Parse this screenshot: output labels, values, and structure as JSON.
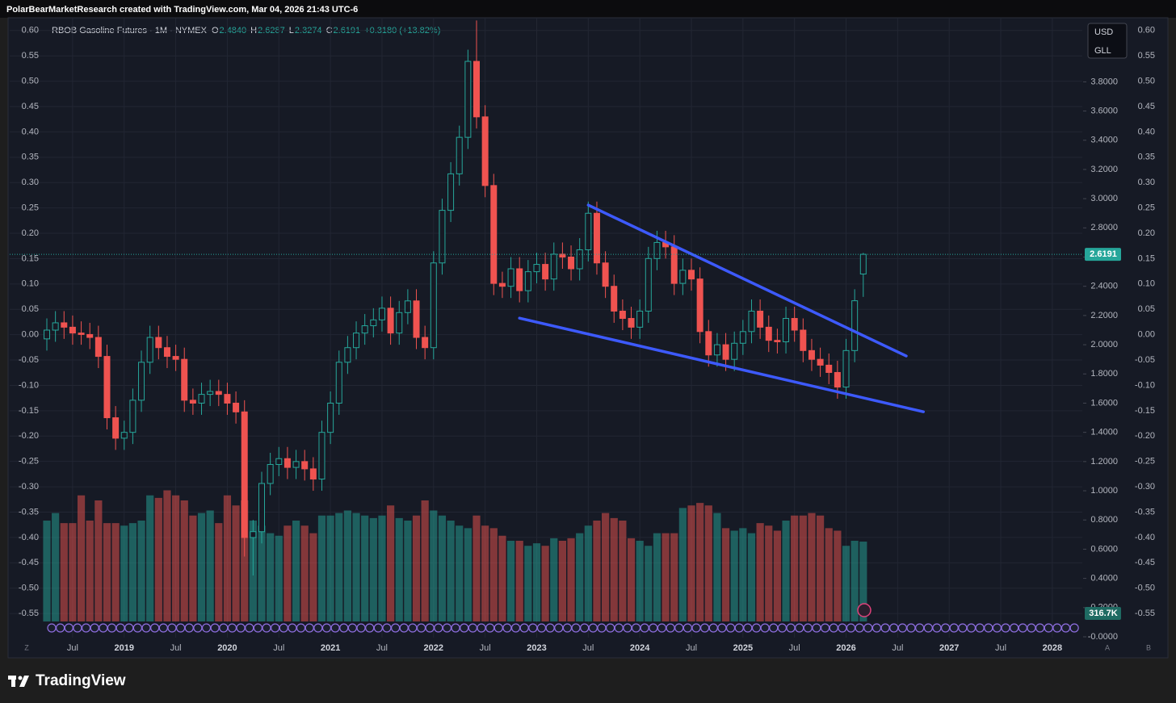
{
  "header": "PolarBearMarketResearch created with TradingView.com, Mar 04, 2026 21:43 UTC-6",
  "brand": "TradingView",
  "currency": "USD",
  "unit": "GLL",
  "corner_labels": [
    "Z",
    "A",
    "B"
  ],
  "chart_data": {
    "type": "candlestick",
    "legend": {
      "name": "RBOB Gasoline Futures · 1M · NYMEX",
      "fields": [
        "O",
        "H",
        "L",
        "C"
      ],
      "value_labels": [
        "2.4840",
        "2.6287",
        "2.3274",
        "2.6191"
      ],
      "change": "+0.3180 (+13.82%)"
    },
    "up_color": "#26a69a",
    "down_color": "#ef5350",
    "categories": [
      "2018-04",
      "2018-05",
      "2018-06",
      "2018-07",
      "2018-08",
      "2018-09",
      "2018-10",
      "2018-11",
      "2018-12",
      "2019-01",
      "2019-02",
      "2019-03",
      "2019-04",
      "2019-05",
      "2019-06",
      "2019-07",
      "2019-08",
      "2019-09",
      "2019-10",
      "2019-11",
      "2019-12",
      "2020-01",
      "2020-02",
      "2020-03",
      "2020-04",
      "2020-05",
      "2020-06",
      "2020-07",
      "2020-08",
      "2020-09",
      "2020-10",
      "2020-11",
      "2020-12",
      "2021-01",
      "2021-02",
      "2021-03",
      "2021-04",
      "2021-05",
      "2021-06",
      "2021-07",
      "2021-08",
      "2021-09",
      "2021-10",
      "2021-11",
      "2021-12",
      "2022-01",
      "2022-02",
      "2022-03",
      "2022-04",
      "2022-05",
      "2022-06",
      "2022-07",
      "2022-08",
      "2022-09",
      "2022-10",
      "2022-11",
      "2022-12",
      "2023-01",
      "2023-02",
      "2023-03",
      "2023-04",
      "2023-05",
      "2023-06",
      "2023-07",
      "2023-08",
      "2023-09",
      "2023-10",
      "2023-11",
      "2023-12",
      "2024-01",
      "2024-02",
      "2024-03",
      "2024-04",
      "2024-05",
      "2024-06",
      "2024-07",
      "2024-08",
      "2024-09",
      "2024-10",
      "2024-11",
      "2024-12",
      "2025-01",
      "2025-02",
      "2025-03",
      "2025-04",
      "2025-05",
      "2025-06",
      "2025-07",
      "2025-08",
      "2025-09",
      "2025-10",
      "2025-11",
      "2025-12",
      "2026-01",
      "2026-02",
      "2026-03"
    ],
    "open": [
      2.04,
      2.1,
      2.15,
      2.12,
      2.08,
      2.07,
      2.05,
      1.92,
      1.5,
      1.36,
      1.4,
      1.62,
      1.88,
      2.05,
      1.98,
      1.92,
      1.9,
      1.62,
      1.6,
      1.66,
      1.68,
      1.66,
      1.6,
      1.54,
      0.68,
      0.72,
      1.05,
      1.18,
      1.22,
      1.16,
      1.2,
      1.15,
      1.08,
      1.4,
      1.6,
      1.88,
      1.98,
      2.08,
      2.13,
      2.17,
      2.25,
      2.08,
      2.22,
      2.3,
      2.05,
      1.98,
      2.56,
      2.92,
      3.17,
      3.42,
      3.94,
      3.56,
      3.09,
      2.42,
      2.4,
      2.52,
      2.37,
      2.5,
      2.55,
      2.45,
      2.62,
      2.6,
      2.52,
      2.65,
      2.9,
      2.56,
      2.4,
      2.23,
      2.18,
      2.12,
      2.23,
      2.59,
      2.7,
      2.67,
      2.42,
      2.51,
      2.45,
      2.09,
      1.93,
      2.0,
      1.9,
      2.01,
      2.09,
      2.23,
      2.12,
      2.03,
      2.02,
      2.18,
      2.1,
      1.96,
      1.9,
      1.86,
      1.81,
      1.71,
      1.96,
      2.484
    ],
    "high": [
      2.18,
      2.23,
      2.23,
      2.2,
      2.16,
      2.15,
      2.13,
      2.0,
      1.58,
      1.48,
      1.7,
      1.96,
      2.13,
      2.13,
      2.06,
      2.0,
      1.98,
      1.7,
      1.74,
      1.76,
      1.76,
      1.74,
      1.68,
      1.62,
      0.8,
      1.13,
      1.26,
      1.3,
      1.3,
      1.28,
      1.28,
      1.23,
      1.48,
      1.68,
      1.96,
      2.06,
      2.16,
      2.21,
      2.25,
      2.33,
      2.33,
      2.3,
      2.38,
      2.38,
      2.13,
      2.64,
      3.0,
      3.25,
      3.5,
      4.02,
      4.22,
      3.64,
      3.17,
      2.5,
      2.6,
      2.6,
      2.58,
      2.63,
      2.63,
      2.7,
      2.7,
      2.68,
      2.73,
      2.98,
      2.98,
      2.64,
      2.48,
      2.31,
      2.26,
      2.31,
      2.67,
      2.78,
      2.78,
      2.75,
      2.59,
      2.59,
      2.53,
      2.17,
      2.08,
      2.08,
      2.09,
      2.17,
      2.31,
      2.31,
      2.2,
      2.11,
      2.26,
      2.26,
      2.18,
      2.04,
      1.98,
      1.94,
      1.89,
      2.04,
      2.38,
      2.6287
    ],
    "low": [
      1.96,
      2.02,
      2.04,
      2.0,
      2.0,
      1.97,
      1.84,
      1.42,
      1.28,
      1.28,
      1.32,
      1.54,
      1.8,
      1.9,
      1.84,
      1.82,
      1.54,
      1.52,
      1.52,
      1.58,
      1.58,
      1.52,
      1.46,
      0.55,
      0.42,
      0.64,
      0.97,
      1.1,
      1.08,
      1.08,
      1.07,
      1.0,
      1.0,
      1.32,
      1.52,
      1.8,
      1.9,
      2.0,
      2.05,
      2.09,
      2.0,
      2.0,
      2.14,
      1.97,
      1.9,
      1.9,
      2.48,
      2.84,
      3.09,
      3.34,
      3.48,
      3.01,
      2.34,
      2.32,
      2.32,
      2.29,
      2.29,
      2.42,
      2.37,
      2.37,
      2.52,
      2.44,
      2.44,
      2.57,
      2.48,
      2.32,
      2.15,
      2.1,
      2.04,
      2.04,
      2.15,
      2.51,
      2.59,
      2.34,
      2.34,
      2.37,
      2.01,
      1.85,
      1.85,
      1.82,
      1.82,
      1.93,
      2.01,
      2.04,
      1.95,
      1.94,
      1.94,
      2.02,
      1.88,
      1.82,
      1.78,
      1.73,
      1.63,
      1.63,
      1.88,
      2.3274
    ],
    "close": [
      2.1,
      2.15,
      2.12,
      2.08,
      2.07,
      2.05,
      1.92,
      1.5,
      1.36,
      1.4,
      1.62,
      1.88,
      2.05,
      1.98,
      1.92,
      1.9,
      1.62,
      1.6,
      1.66,
      1.68,
      1.66,
      1.6,
      1.54,
      0.68,
      0.72,
      1.05,
      1.18,
      1.22,
      1.16,
      1.2,
      1.15,
      1.08,
      1.4,
      1.6,
      1.88,
      1.98,
      2.08,
      2.13,
      2.17,
      2.25,
      2.08,
      2.22,
      2.3,
      2.05,
      1.98,
      2.56,
      2.92,
      3.17,
      3.42,
      3.94,
      3.56,
      3.09,
      2.42,
      2.4,
      2.52,
      2.37,
      2.5,
      2.55,
      2.45,
      2.62,
      2.6,
      2.52,
      2.65,
      2.9,
      2.56,
      2.4,
      2.23,
      2.18,
      2.12,
      2.23,
      2.59,
      2.7,
      2.67,
      2.42,
      2.51,
      2.45,
      2.09,
      1.93,
      2.0,
      1.9,
      2.01,
      2.09,
      2.23,
      2.12,
      2.03,
      2.02,
      2.18,
      2.1,
      1.96,
      1.9,
      1.86,
      1.81,
      1.71,
      1.96,
      2.3011,
      2.6191
    ],
    "volume": [
      400000,
      430000,
      390000,
      390000,
      500000,
      400000,
      480000,
      390000,
      390000,
      380000,
      390000,
      400000,
      500000,
      490000,
      520000,
      500000,
      480000,
      420000,
      430000,
      440000,
      390000,
      500000,
      460000,
      480000,
      400000,
      380000,
      350000,
      340000,
      380000,
      400000,
      380000,
      350000,
      420000,
      420000,
      430000,
      440000,
      430000,
      420000,
      410000,
      420000,
      460000,
      410000,
      400000,
      420000,
      480000,
      440000,
      420000,
      400000,
      380000,
      370000,
      420000,
      380000,
      370000,
      340000,
      320000,
      320000,
      300000,
      310000,
      300000,
      330000,
      320000,
      330000,
      350000,
      380000,
      400000,
      430000,
      410000,
      400000,
      330000,
      320000,
      300000,
      350000,
      350000,
      350000,
      450000,
      460000,
      470000,
      460000,
      430000,
      370000,
      360000,
      370000,
      350000,
      390000,
      380000,
      360000,
      400000,
      420000,
      420000,
      430000,
      420000,
      370000,
      360000,
      300000,
      320000,
      316700
    ],
    "volume_last_label": "316.7K",
    "ylim": [
      0,
      4.2
    ],
    "yticks": [
      {
        "value": 0,
        "label": "-0.0000"
      },
      {
        "value": 0.2,
        "label": "0.2000"
      },
      {
        "value": 0.4,
        "label": "0.4000"
      },
      {
        "value": 0.6,
        "label": "0.6000"
      },
      {
        "value": 0.8,
        "label": "0.8000"
      },
      {
        "value": 1.0,
        "label": "1.0000"
      },
      {
        "value": 1.2,
        "label": "1.2000"
      },
      {
        "value": 1.4,
        "label": "1.4000"
      },
      {
        "value": 1.6,
        "label": "1.6000"
      },
      {
        "value": 1.8,
        "label": "1.8000"
      },
      {
        "value": 2.0,
        "label": "2.0000"
      },
      {
        "value": 2.2,
        "label": "2.2000"
      },
      {
        "value": 2.4,
        "label": "2.4000"
      },
      {
        "value": 2.6,
        "label": "2.6000"
      },
      {
        "value": 2.8,
        "label": "2.8000"
      },
      {
        "value": 3.0,
        "label": "3.0000"
      },
      {
        "value": 3.2,
        "label": "3.2000"
      },
      {
        "value": 3.4,
        "label": "3.4000"
      },
      {
        "value": 3.6,
        "label": "3.6000"
      },
      {
        "value": 3.8,
        "label": "3.8000"
      }
    ],
    "y2lim": [
      -0.596,
      0.614
    ],
    "y2ticks": [
      {
        "value": 0.6,
        "label": "0.60"
      },
      0.55,
      {
        "value": 0.5,
        "label": "0.50"
      },
      0.45,
      {
        "value": 0.4,
        "label": "0.40"
      },
      0.35,
      {
        "value": 0.3,
        "label": "0.30"
      },
      0.25,
      {
        "value": 0.2,
        "label": "0.20"
      },
      0.15,
      {
        "value": 0.1,
        "label": "0.10"
      },
      0.05,
      {
        "value": 0,
        "label": "0.00"
      },
      -0.05,
      {
        "value": -0.1,
        "label": "-0.10"
      },
      -0.15,
      {
        "value": -0.2,
        "label": "-0.20"
      },
      -0.25,
      {
        "value": -0.3,
        "label": "-0.30"
      },
      -0.35,
      {
        "value": -0.4,
        "label": "-0.40"
      },
      -0.45,
      {
        "value": -0.5,
        "label": "-0.50"
      },
      -0.55
    ],
    "xticks": [
      {
        "value": "2018-07",
        "label": "Jul"
      },
      {
        "value": "2019-01",
        "label": "2019"
      },
      {
        "value": "2019-07",
        "label": "Jul"
      },
      {
        "value": "2020-01",
        "label": "2020"
      },
      {
        "value": "2020-07",
        "label": "Jul"
      },
      {
        "value": "2021-01",
        "label": "2021"
      },
      {
        "value": "2021-07",
        "label": "Jul"
      },
      {
        "value": "2022-01",
        "label": "2022"
      },
      {
        "value": "2022-07",
        "label": "Jul"
      },
      {
        "value": "2023-01",
        "label": "2023"
      },
      {
        "value": "2023-07",
        "label": "Jul"
      },
      {
        "value": "2024-01",
        "label": "2024"
      },
      {
        "value": "2024-07",
        "label": "Jul"
      },
      {
        "value": "2025-01",
        "label": "2025"
      },
      {
        "value": "2025-07",
        "label": "Jul"
      },
      {
        "value": "2026-01",
        "label": "2026"
      },
      {
        "value": "2026-07",
        "label": "Jul"
      },
      {
        "value": "2027-01",
        "label": "2027"
      },
      {
        "value": "2027-07",
        "label": "Jul"
      },
      {
        "value": "2028-01",
        "label": "2028"
      }
    ],
    "grid": true,
    "trendlines": [
      {
        "color": "#3d5afe",
        "start": {
          "x": "2023-07",
          "y": 2.956
        },
        "end": {
          "x": "2026-08",
          "y": 1.923
        }
      },
      {
        "color": "#3d5afe",
        "start": {
          "x": "2022-11",
          "y": 2.182
        },
        "end": {
          "x": "2026-10",
          "y": 1.541
        }
      }
    ]
  }
}
